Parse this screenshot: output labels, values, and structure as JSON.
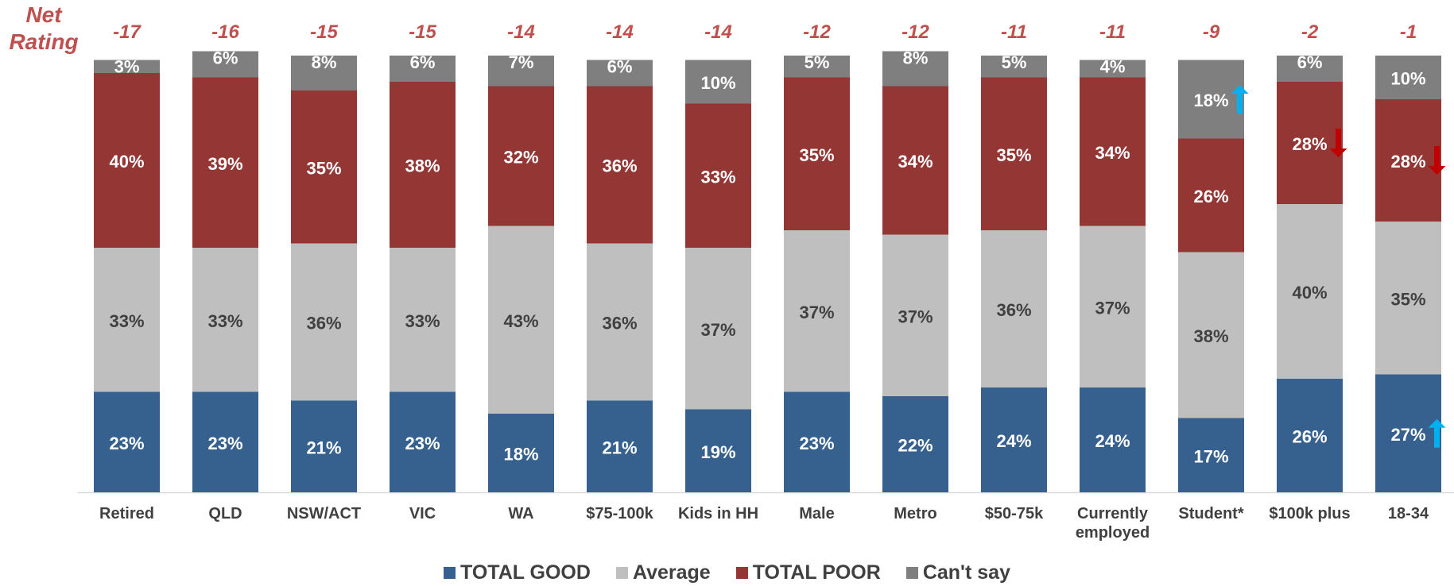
{
  "net_rating_label": "Net Rating",
  "chart_data": {
    "type": "bar",
    "stacked": true,
    "categories": [
      "Retired",
      "QLD",
      "NSW/ACT",
      "VIC",
      "WA",
      "$75-100k",
      "Kids in HH",
      "Male",
      "Metro",
      "$50-75k",
      "Currently employed",
      "Student*",
      "$100k plus",
      "18-34"
    ],
    "net_rating": [
      "-17",
      "-16",
      "-15",
      "-15",
      "-14",
      "-14",
      "-14",
      "-12",
      "-12",
      "-11",
      "-11",
      "-9",
      "-2",
      "-1"
    ],
    "series": [
      {
        "name": "TOTAL GOOD",
        "color": "#36618f",
        "values": [
          23,
          23,
          21,
          23,
          18,
          21,
          19,
          23,
          22,
          24,
          24,
          17,
          26,
          27
        ]
      },
      {
        "name": "Average",
        "color": "#bfbfbf",
        "values": [
          33,
          33,
          36,
          33,
          43,
          36,
          37,
          37,
          37,
          36,
          37,
          38,
          40,
          35
        ]
      },
      {
        "name": "TOTAL POOR",
        "color": "#943634",
        "values": [
          40,
          39,
          35,
          38,
          32,
          36,
          33,
          35,
          34,
          35,
          34,
          26,
          28,
          28
        ]
      },
      {
        "name": "Can't say",
        "color": "#7f7f7f",
        "values": [
          3,
          6,
          8,
          6,
          7,
          6,
          10,
          5,
          8,
          5,
          4,
          18,
          6,
          10
        ]
      }
    ],
    "markers": [
      {
        "category": "Student*",
        "series": "Can't say",
        "direction": "up",
        "color": "#00b0f0"
      },
      {
        "category": "$100k plus",
        "series": "TOTAL POOR",
        "direction": "down",
        "color": "#c00000"
      },
      {
        "category": "18-34",
        "series": "TOTAL POOR",
        "direction": "down",
        "color": "#c00000"
      },
      {
        "category": "18-34",
        "series": "TOTAL GOOD",
        "direction": "up",
        "color": "#00b0f0"
      }
    ],
    "legend": "bottom",
    "grid": false
  }
}
